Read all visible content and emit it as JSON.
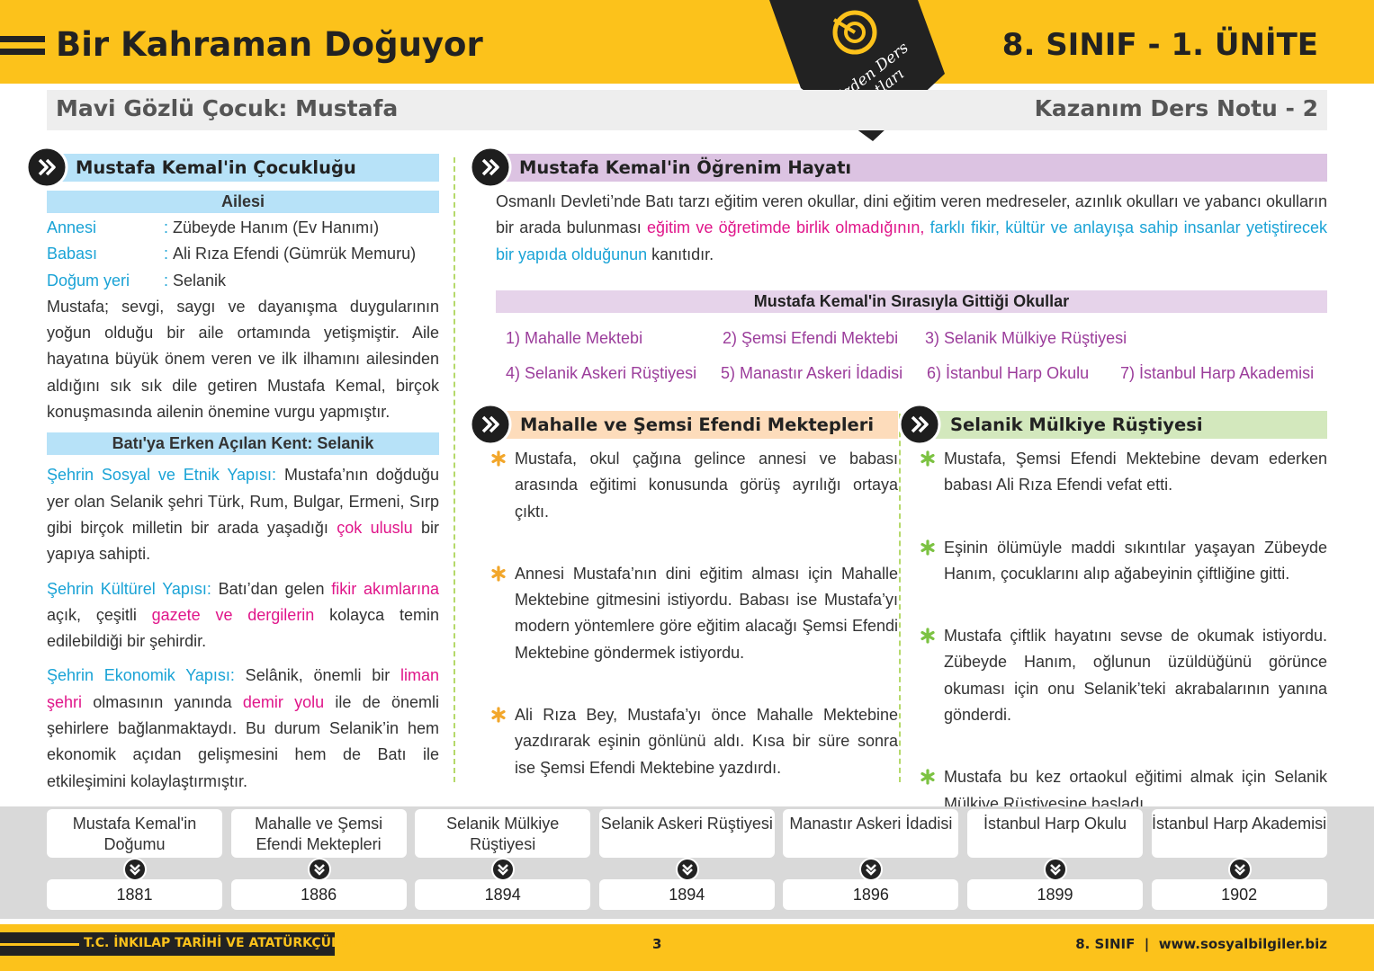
{
  "header": {
    "title": "Bir Kahraman Doğuyor",
    "unit": "8. SINIF - 1. ÜNİTE",
    "badge": [
      "Bizden Ders",
      "Notları"
    ]
  },
  "subheader": {
    "topic": "Mavi Gözlü Çocuk: Mustafa",
    "note": "Kazanım Ders Notu - 2"
  },
  "childhood": {
    "heading": "Mustafa Kemal'in Çocukluğu",
    "family_title": "Ailesi",
    "family": [
      {
        "label": "Annesi",
        "sep": ":",
        "value": "Zübeyde Hanım (Ev Hanımı)"
      },
      {
        "label": "Babası",
        "sep": ":",
        "value": "Ali Rıza Efendi (Gümrük Memuru)"
      },
      {
        "label": "Doğum yeri",
        "sep": ":",
        "value": "Selanik"
      }
    ],
    "paragraph": "Mustafa; sevgi, saygı ve dayanışma duygularının yoğun olduğu bir aile ortamında yetişmiştir. Aile hayatına büyük önem veren ve ilk ilhamını ailesinden aldığını sık sık dile getiren Mustafa Kemal, birçok konuşmasında ailenin önemine vurgu yapmıştır.",
    "city_title": "Batı'ya Erken Açılan Kent: Selanik",
    "city": [
      [
        {
          "text": "Şehrin Sosyal ve Etnik Yapısı:",
          "color": "#1aa3d6"
        },
        {
          "text": " Mustafa’nın doğduğu yer olan Selanik şehri Türk, Rum, Bulgar, Ermeni, Sırp gibi birçok milletin bir arada yaşadığı "
        },
        {
          "text": "çok uluslu",
          "color": "#e0168a"
        },
        {
          "text": " bir yapıya sahipti."
        }
      ],
      [
        {
          "text": "Şehrin Kültürel Yapısı:",
          "color": "#1aa3d6"
        },
        {
          "text": " Batı’dan gelen "
        },
        {
          "text": "fikir akımlarına",
          "color": "#e0168a"
        },
        {
          "text": " açık, çeşitli "
        },
        {
          "text": "gazete ve dergilerin",
          "color": "#e0168a"
        },
        {
          "text": " kolayca temin edilebildiği bir şehirdir."
        }
      ],
      [
        {
          "text": "Şehrin Ekonomik Yapısı:",
          "color": "#1aa3d6"
        },
        {
          "text": " Selânik, önemli bir "
        },
        {
          "text": "liman şehri",
          "color": "#e0168a"
        },
        {
          "text": " olmasının yanında "
        },
        {
          "text": "demir yolu",
          "color": "#e0168a"
        },
        {
          "text": " ile de önemli şehirlere bağlanmaktaydı. Bu durum Selanik’in hem ekonomik açıdan gelişmesini hem de Batı ile etkileşimini kolaylaştırmıştır."
        }
      ]
    ]
  },
  "education": {
    "heading": "Mustafa Kemal'in Öğrenim Hayatı",
    "intro": [
      {
        "text": "Osmanlı Devleti’nde Batı tarzı eğitim veren okullar, dini eğitim veren medreseler, azınlık okulları ve yabancı okulların bir arada bulunması "
      },
      {
        "text": "eğitim ve öğretimde birlik olmadığının,",
        "color": "#e0168a"
      },
      {
        "text": " farklı fikir, kültür ve anlayışa sahip insanlar yetiştirecek bir yapıda olduğunun",
        "color": "#1aa3d6"
      },
      {
        "text": " kanıtıdır."
      }
    ],
    "schools_title": "Mustafa Kemal'in Sırasıyla Gittiği Okullar",
    "schools": [
      "1) Mahalle Mektebi",
      "2) Şemsi Efendi Mektebi",
      "3) Selanik Mülkiye Rüştiyesi",
      "4) Selanik Askeri Rüştiyesi",
      "5) Manastır Askeri İdadisi",
      "6) İstanbul Harp Okulu",
      "7) İstanbul Harp Akademisi"
    ]
  },
  "mahalle": {
    "heading": "Mahalle ve Şemsi Efendi Mektepleri",
    "items": [
      "Mustafa, okul çağına gelince annesi ve babası arasında eğitimi konusunda görüş ayrılığı ortaya çıktı.",
      "Annesi Mustafa’nın dini eğitim alması için Mahalle Mektebine gitmesini istiyordu. Babası ise Mustafa’yı modern yöntemlere göre eğitim alacağı Şemsi Efendi Mektebine göndermek istiyordu.",
      "Ali Rıza Bey, Mustafa’yı önce Mahalle Mektebine yazdırarak eşinin gönlünü aldı. Kısa bir süre sonra ise Şemsi Efendi Mektebine yazdırdı."
    ]
  },
  "mulkiye": {
    "heading": "Selanik Mülkiye Rüştiyesi",
    "items": [
      "Mustafa, Şemsi Efendi Mektebine devam ederken babası Ali Rıza Efendi vefat etti.",
      "Eşinin ölümüyle maddi sıkıntılar yaşayan Zübeyde Hanım, çocuklarını alıp ağabeyinin çiftliğine gitti.",
      "Mustafa çiftlik hayatını sevse de okumak istiyordu. Zübeyde Hanım, oğlunun üzüldüğünü görünce okuması için onu Selanik’teki akrabalarının yanına gönderdi.",
      "Mustafa bu kez ortaokul eğitimi almak için Selanik Mülkiye Rüştiyesine başladı."
    ]
  },
  "timeline": [
    {
      "event": "Mustafa Kemal'in Doğumu",
      "year": 1881
    },
    {
      "event": "Mahalle ve Şemsi Efendi Mektepleri",
      "year": 1886
    },
    {
      "event": "Selanik Mülkiye Rüştiyesi",
      "year": 1894
    },
    {
      "event": "Selanik Askeri Rüştiyesi",
      "year": 1894
    },
    {
      "event": "Manastır Askeri İdadisi",
      "year": 1896
    },
    {
      "event": "İstanbul Harp Okulu",
      "year": 1899
    },
    {
      "event": "İstanbul Harp Akademisi",
      "year": 1902
    }
  ],
  "footer": {
    "course": "T.C. İNKILAP TARİHİ VE ATATÜRKÇÜLÜK",
    "page": 3,
    "site": "8. SINIF  |  www.sosyalbilgiler.biz"
  }
}
